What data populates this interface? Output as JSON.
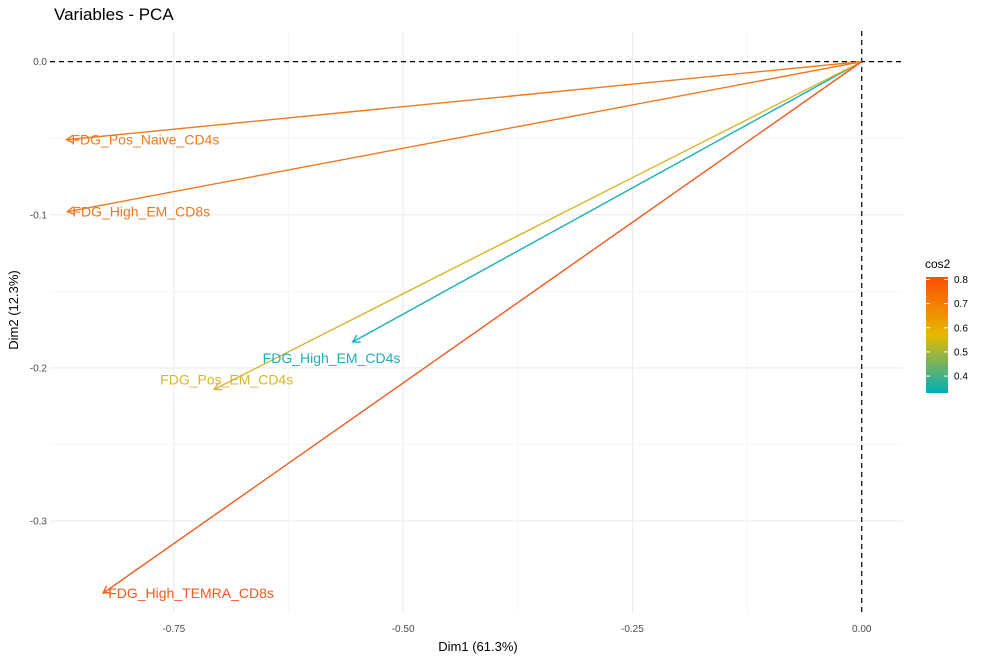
{
  "chart_data": {
    "type": "pca-variables",
    "title": "Variables - PCA",
    "xlabel": "Dim1 (61.3%)",
    "ylabel": "Dim2 (12.3%)",
    "xlim": [
      -0.885,
      0.045
    ],
    "ylim": [
      -0.36,
      0.02
    ],
    "x_ticks": [
      -0.75,
      -0.5,
      -0.25,
      0.0
    ],
    "x_tick_labels": [
      "-0.75",
      "-0.50",
      "-0.25",
      "0.00"
    ],
    "y_ticks": [
      0.0,
      -0.1,
      -0.2,
      -0.3
    ],
    "y_tick_labels": [
      "0.0",
      "-0.1",
      "-0.2",
      "-0.3"
    ],
    "grid": true,
    "reference_lines": {
      "x": 0,
      "y": 0,
      "style": "dashed"
    },
    "variables": [
      {
        "name": "FDG_Pos_Naive_CD4s",
        "x": -0.867,
        "y": -0.051,
        "cos2": 0.76,
        "color": "#F07A1E"
      },
      {
        "name": "FDG_High_EM_CD8s",
        "x": -0.866,
        "y": -0.098,
        "cos2": 0.76,
        "color": "#EF781E"
      },
      {
        "name": "FDG_High_EM_CD4s",
        "x": -0.555,
        "y": -0.183,
        "cos2": 0.34,
        "color": "#1AAFB8"
      },
      {
        "name": "FDG_Pos_EM_CD4s",
        "x": -0.706,
        "y": -0.214,
        "cos2": 0.54,
        "color": "#D9B52B"
      },
      {
        "name": "FDG_High_TEMRA_CD8s",
        "x": -0.827,
        "y": -0.347,
        "cos2": 0.8,
        "color": "#F05A1E"
      }
    ],
    "legend": {
      "title": "cos2",
      "placement": "right",
      "range": [
        0.33,
        0.81
      ],
      "ticks": [
        0.4,
        0.5,
        0.6,
        0.7,
        0.8
      ],
      "tick_labels": [
        "0.4",
        "0.5",
        "0.6",
        "0.7",
        "0.8"
      ],
      "gradient": [
        "#00AFBB",
        "#E7B800",
        "#FC4E07"
      ]
    }
  }
}
